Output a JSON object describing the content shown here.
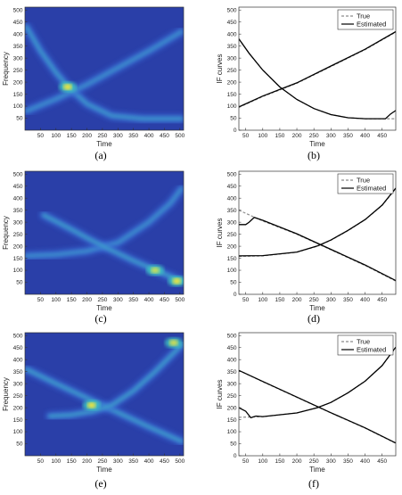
{
  "captions": [
    "(a)",
    "(b)",
    "(c)",
    "(d)",
    "(e)",
    "(f)"
  ],
  "colors": {
    "tf_background": "#2a3fa8",
    "tf_low": "#3a6cd8",
    "tf_mid": "#3fc9c0",
    "tf_high": "#f5e53a",
    "true_curve": "#8c8c8c",
    "estimated_curve": "#000000"
  },
  "chart_data": [
    {
      "panel": "a",
      "type": "heatmap",
      "xlabel": "Time",
      "ylabel": "Frequency",
      "xlim": [
        0,
        512
      ],
      "ylim": [
        0,
        512
      ],
      "xticks": [
        50,
        100,
        150,
        200,
        250,
        300,
        350,
        400,
        450,
        500
      ],
      "yticks": [
        50,
        100,
        150,
        200,
        250,
        300,
        350,
        400,
        450,
        500
      ],
      "ridges": [
        {
          "points": [
            [
              5,
              430
            ],
            [
              50,
              330
            ],
            [
              100,
              240
            ],
            [
              140,
              180
            ],
            [
              200,
              110
            ],
            [
              280,
              60
            ],
            [
              380,
              48
            ],
            [
              505,
              48
            ]
          ],
          "intensity": 0.55
        },
        {
          "points": [
            [
              5,
              80
            ],
            [
              100,
              130
            ],
            [
              200,
              190
            ],
            [
              300,
              260
            ],
            [
              400,
              330
            ],
            [
              505,
              410
            ]
          ],
          "intensity": 0.45
        }
      ],
      "hotspots": [
        {
          "x": 138,
          "y": 180,
          "intensity": 1.0
        }
      ]
    },
    {
      "panel": "b",
      "type": "line",
      "xlabel": "Time",
      "ylabel": "IF curves",
      "xlim": [
        30,
        490
      ],
      "ylim": [
        0,
        512
      ],
      "xticks": [
        50,
        100,
        150,
        200,
        250,
        300,
        350,
        400,
        450
      ],
      "yticks": [
        0,
        50,
        100,
        150,
        200,
        250,
        300,
        350,
        400,
        450,
        500
      ],
      "legend": [
        "True",
        "Estimated"
      ],
      "legend_position": "top-right",
      "series": [
        {
          "name": "True",
          "style": "dashed",
          "curves": [
            [
              [
                30,
                380
              ],
              [
                60,
                320
              ],
              [
                100,
                250
              ],
              [
                150,
                180
              ],
              [
                200,
                128
              ],
              [
                250,
                90
              ],
              [
                300,
                65
              ],
              [
                350,
                52
              ],
              [
                400,
                48
              ],
              [
                490,
                48
              ]
            ],
            [
              [
                30,
                95
              ],
              [
                100,
                140
              ],
              [
                200,
                195
              ],
              [
                300,
                265
              ],
              [
                400,
                335
              ],
              [
                490,
                408
              ]
            ]
          ]
        },
        {
          "name": "Estimated",
          "style": "solid",
          "curves": [
            [
              [
                30,
                380
              ],
              [
                60,
                320
              ],
              [
                100,
                250
              ],
              [
                150,
                180
              ],
              [
                200,
                128
              ],
              [
                250,
                90
              ],
              [
                300,
                65
              ],
              [
                350,
                52
              ],
              [
                400,
                48
              ],
              [
                460,
                48
              ],
              [
                475,
                68
              ],
              [
                490,
                82
              ]
            ],
            [
              [
                30,
                97
              ],
              [
                100,
                142
              ],
              [
                200,
                197
              ],
              [
                300,
                267
              ],
              [
                400,
                337
              ],
              [
                490,
                410
              ]
            ]
          ]
        }
      ]
    },
    {
      "panel": "c",
      "type": "heatmap",
      "xlabel": "Time",
      "ylabel": "Frequency",
      "xlim": [
        0,
        512
      ],
      "ylim": [
        0,
        512
      ],
      "xticks": [
        50,
        100,
        150,
        200,
        250,
        300,
        350,
        400,
        450,
        500
      ],
      "yticks": [
        50,
        100,
        150,
        200,
        250,
        300,
        350,
        400,
        450,
        500
      ],
      "ridges": [
        {
          "points": [
            [
              5,
              160
            ],
            [
              100,
              165
            ],
            [
              200,
              180
            ],
            [
              300,
              215
            ],
            [
              400,
              300
            ],
            [
              470,
              380
            ],
            [
              505,
              440
            ]
          ],
          "intensity": 0.45
        },
        {
          "points": [
            [
              60,
              330
            ],
            [
              150,
              270
            ],
            [
              200,
              235
            ],
            [
              260,
              195
            ],
            [
              350,
              140
            ],
            [
              450,
              85
            ],
            [
              505,
              55
            ]
          ],
          "intensity": 0.6
        }
      ],
      "hotspots": [
        {
          "x": 490,
          "y": 55,
          "intensity": 1.0
        },
        {
          "x": 420,
          "y": 100,
          "intensity": 0.8
        }
      ]
    },
    {
      "panel": "d",
      "type": "line",
      "xlabel": "Time",
      "ylabel": "IF curves",
      "xlim": [
        30,
        490
      ],
      "ylim": [
        0,
        512
      ],
      "xticks": [
        50,
        100,
        150,
        200,
        250,
        300,
        350,
        400,
        450
      ],
      "yticks": [
        0,
        50,
        100,
        150,
        200,
        250,
        300,
        350,
        400,
        450,
        500
      ],
      "legend": [
        "True",
        "Estimated"
      ],
      "legend_position": "top-right",
      "series": [
        {
          "name": "True",
          "style": "dashed",
          "curves": [
            [
              [
                30,
                350
              ],
              [
                100,
                305
              ],
              [
                200,
                250
              ],
              [
                300,
                185
              ],
              [
                400,
                120
              ],
              [
                490,
                55
              ]
            ],
            [
              [
                30,
                158
              ],
              [
                100,
                160
              ],
              [
                200,
                175
              ],
              [
                260,
                200
              ],
              [
                300,
                225
              ],
              [
                350,
                265
              ],
              [
                400,
                310
              ],
              [
                450,
                370
              ],
              [
                490,
                440
              ]
            ]
          ]
        },
        {
          "name": "Estimated",
          "style": "solid",
          "curves": [
            [
              [
                30,
                290
              ],
              [
                50,
                290
              ],
              [
                60,
                300
              ],
              [
                75,
                320
              ],
              [
                100,
                308
              ],
              [
                200,
                252
              ],
              [
                300,
                187
              ],
              [
                400,
                122
              ],
              [
                490,
                57
              ]
            ],
            [
              [
                30,
                160
              ],
              [
                100,
                161
              ],
              [
                200,
                176
              ],
              [
                260,
                201
              ],
              [
                300,
                226
              ],
              [
                350,
                266
              ],
              [
                400,
                311
              ],
              [
                450,
                371
              ],
              [
                490,
                442
              ]
            ]
          ]
        }
      ]
    },
    {
      "panel": "e",
      "type": "heatmap",
      "xlabel": "Time",
      "ylabel": "Frequency",
      "xlim": [
        0,
        512
      ],
      "ylim": [
        0,
        512
      ],
      "xticks": [
        50,
        100,
        150,
        200,
        250,
        300,
        350,
        400,
        450,
        500
      ],
      "yticks": [
        50,
        100,
        150,
        200,
        250,
        300,
        350,
        400,
        450,
        500
      ],
      "ridges": [
        {
          "points": [
            [
              5,
              360
            ],
            [
              100,
              300
            ],
            [
              200,
              240
            ],
            [
              250,
              210
            ],
            [
              300,
              180
            ],
            [
              400,
              120
            ],
            [
              505,
              60
            ]
          ],
          "intensity": 0.6
        },
        {
          "points": [
            [
              80,
              165
            ],
            [
              150,
              170
            ],
            [
              220,
              185
            ],
            [
              280,
              210
            ],
            [
              350,
              270
            ],
            [
              420,
              350
            ],
            [
              505,
              460
            ]
          ],
          "intensity": 0.6
        }
      ],
      "hotspots": [
        {
          "x": 215,
          "y": 210,
          "intensity": 1.0
        },
        {
          "x": 480,
          "y": 470,
          "intensity": 0.85
        }
      ]
    },
    {
      "panel": "f",
      "type": "line",
      "xlabel": "Time",
      "ylabel": "IF curves",
      "xlim": [
        30,
        490
      ],
      "ylim": [
        0,
        512
      ],
      "xticks": [
        50,
        100,
        150,
        200,
        250,
        300,
        350,
        400,
        450
      ],
      "yticks": [
        0,
        50,
        100,
        150,
        200,
        250,
        300,
        350,
        400,
        450,
        500
      ],
      "legend": [
        "True",
        "Estimated"
      ],
      "legend_position": "top-right",
      "series": [
        {
          "name": "True",
          "style": "dashed",
          "curves": [
            [
              [
                30,
                355
              ],
              [
                100,
                308
              ],
              [
                200,
                243
              ],
              [
                300,
                178
              ],
              [
                400,
                115
              ],
              [
                490,
                52
              ]
            ],
            [
              [
                30,
                160
              ],
              [
                100,
                163
              ],
              [
                200,
                178
              ],
              [
                260,
                200
              ],
              [
                300,
                222
              ],
              [
                350,
                262
              ],
              [
                400,
                310
              ],
              [
                450,
                375
              ],
              [
                490,
                450
              ]
            ]
          ]
        },
        {
          "name": "Estimated",
          "style": "solid",
          "curves": [
            [
              [
                30,
                355
              ],
              [
                100,
                309
              ],
              [
                200,
                244
              ],
              [
                300,
                179
              ],
              [
                400,
                116
              ],
              [
                490,
                53
              ]
            ],
            [
              [
                30,
                200
              ],
              [
                50,
                185
              ],
              [
                65,
                158
              ],
              [
                80,
                165
              ],
              [
                100,
                163
              ],
              [
                200,
                178
              ],
              [
                260,
                200
              ],
              [
                300,
                222
              ],
              [
                350,
                262
              ],
              [
                400,
                310
              ],
              [
                450,
                375
              ],
              [
                490,
                452
              ]
            ]
          ]
        }
      ]
    }
  ]
}
